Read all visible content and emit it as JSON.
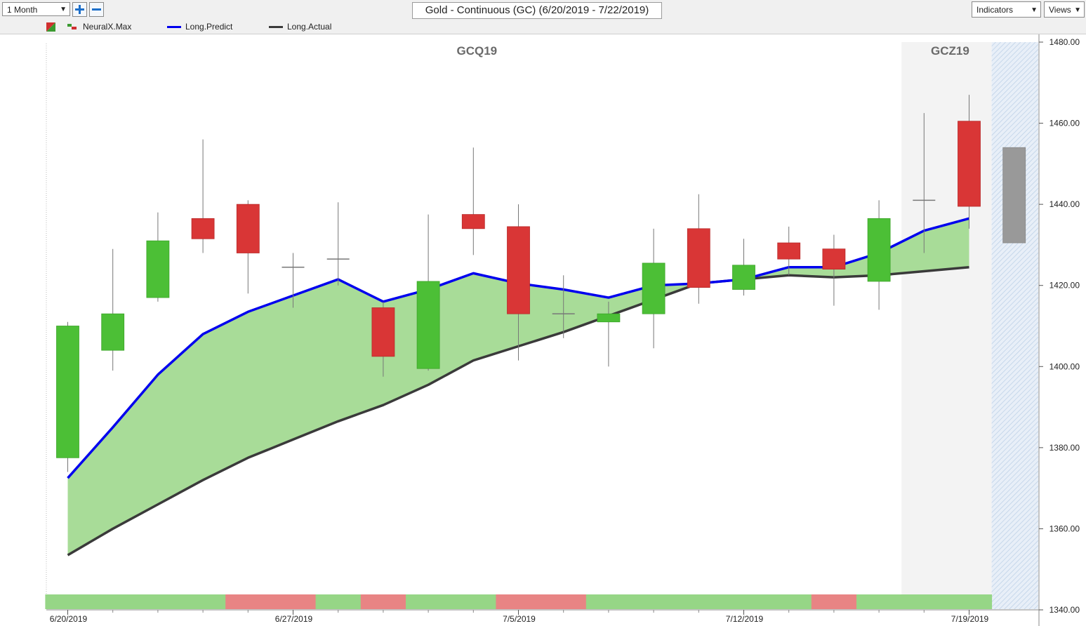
{
  "toolbar": {
    "period_select": "1 Month",
    "zoom_in_icon": "plus-icon",
    "zoom_out_icon": "minus-icon",
    "title": "Gold - Continuous (GC) (6/20/2019 - 7/22/2019)",
    "indicators_label": "Indicators",
    "views_label": "Views"
  },
  "legend": {
    "icon": "chart-type-icon",
    "items": [
      {
        "name": "NeuralX.Max",
        "color": "#d03030"
      },
      {
        "name": "Long.Predict",
        "color": "#0000ee"
      },
      {
        "name": "Long.Actual",
        "color": "#3a3a3a"
      }
    ]
  },
  "colors": {
    "up": "#4cbf36",
    "down": "#d93636",
    "predict_line": "#0000ee",
    "actual_line": "#3a3a3a",
    "fill": "#a8dc98",
    "band_up": "#96d686",
    "band_down": "#e88484",
    "forecast_candle": "#999999"
  },
  "chart_data": {
    "type": "candlestick",
    "y_axis": {
      "ticks": [
        "1480.00",
        "1460.00",
        "1440.00",
        "1420.00",
        "1400.00",
        "1380.00",
        "1360.00",
        "1340.00"
      ],
      "ylim": [
        1340,
        1480
      ]
    },
    "x_tick_labels": [
      {
        "label": "6/20/2019",
        "index": 0
      },
      {
        "label": "6/27/2019",
        "index": 5
      },
      {
        "label": "7/5/2019",
        "index": 10
      },
      {
        "label": "7/12/2019",
        "index": 15
      },
      {
        "label": "7/19/2019",
        "index": 20
      }
    ],
    "contract_labels": [
      {
        "label": "GCQ19",
        "index": 9
      },
      {
        "label": "GCZ19",
        "index": 19.5
      }
    ],
    "contract_shade_from": 18.5,
    "forecast_from": 20.5,
    "candles": [
      {
        "date": "6/20/2019",
        "open": 1377.5,
        "high": 1411,
        "low": 1374,
        "close": 1410
      },
      {
        "date": "6/21/2019",
        "open": 1404,
        "high": 1429,
        "low": 1399,
        "close": 1413
      },
      {
        "date": "6/24/2019",
        "open": 1417,
        "high": 1438,
        "low": 1416,
        "close": 1431
      },
      {
        "date": "6/25/2019",
        "open": 1436.5,
        "high": 1456,
        "low": 1428,
        "close": 1431.5
      },
      {
        "date": "6/26/2019",
        "open": 1440,
        "high": 1441,
        "low": 1418,
        "close": 1428
      },
      {
        "date": "6/27/2019",
        "open": 1425,
        "high": 1428,
        "low": 1414.5,
        "close": 1424.5
      },
      {
        "date": "6/28/2019",
        "open": 1426,
        "high": 1440.5,
        "low": 1420,
        "close": 1426.5
      },
      {
        "date": "7/1/2019",
        "open": 1414.5,
        "high": 1416,
        "low": 1397.5,
        "close": 1402.5
      },
      {
        "date": "7/2/2019",
        "open": 1399.5,
        "high": 1437.5,
        "low": 1399,
        "close": 1421
      },
      {
        "date": "7/3/2019",
        "open": 1437.5,
        "high": 1454,
        "low": 1427.5,
        "close": 1434
      },
      {
        "date": "7/5/2019",
        "open": 1434.5,
        "high": 1440,
        "low": 1401.5,
        "close": 1413
      },
      {
        "date": "7/8/2019",
        "open": 1413.5,
        "high": 1422.5,
        "low": 1407,
        "close": 1413
      },
      {
        "date": "7/9/2019",
        "open": 1411,
        "high": 1416,
        "low": 1400,
        "close": 1413
      },
      {
        "date": "7/10/2019",
        "open": 1413,
        "high": 1434,
        "low": 1404.5,
        "close": 1425.5
      },
      {
        "date": "7/11/2019",
        "open": 1434,
        "high": 1442.5,
        "low": 1415.5,
        "close": 1419.5
      },
      {
        "date": "7/12/2019",
        "open": 1419,
        "high": 1431.5,
        "low": 1417.5,
        "close": 1425
      },
      {
        "date": "7/15/2019",
        "open": 1430.5,
        "high": 1434.5,
        "low": 1422.5,
        "close": 1426.5
      },
      {
        "date": "7/16/2019",
        "open": 1429,
        "high": 1432.5,
        "low": 1415,
        "close": 1424
      },
      {
        "date": "7/17/2019",
        "open": 1421,
        "high": 1441,
        "low": 1414,
        "close": 1436.5
      },
      {
        "date": "7/18/2019",
        "open": 1441,
        "high": 1462.5,
        "low": 1428,
        "close": 1441
      },
      {
        "date": "7/19/2019",
        "open": 1460.5,
        "high": 1467,
        "low": 1434,
        "close": 1439.5
      }
    ],
    "forecast_candle": {
      "date": "7/22/2019",
      "top": 1454,
      "bottom": 1430.5
    },
    "series": [
      {
        "name": "Long.Predict",
        "values": [
          1372.5,
          1385,
          1398,
          1408,
          1413.5,
          1417.5,
          1421.5,
          1416,
          1419,
          1423,
          1420.5,
          1419,
          1417,
          1420,
          1420.5,
          1421.5,
          1424.5,
          1424.5,
          1428,
          1433.5,
          1436.5
        ]
      },
      {
        "name": "Long.Actual",
        "values": [
          1353.5,
          1360,
          1366,
          1372,
          1377.5,
          1382,
          1386.5,
          1390.5,
          1395.5,
          1401.5,
          1405,
          1408.5,
          1412.5,
          1416.5,
          1420.5,
          1421.5,
          1422.5,
          1422,
          1422.5,
          1423.5,
          1424.5
        ]
      }
    ],
    "neuralx_band": [
      "up",
      "up",
      "up",
      "up",
      "down",
      "down",
      "up",
      "down",
      "up",
      "up",
      "down",
      "down",
      "up",
      "up",
      "up",
      "up",
      "up",
      "down",
      "up",
      "up",
      "up"
    ]
  }
}
